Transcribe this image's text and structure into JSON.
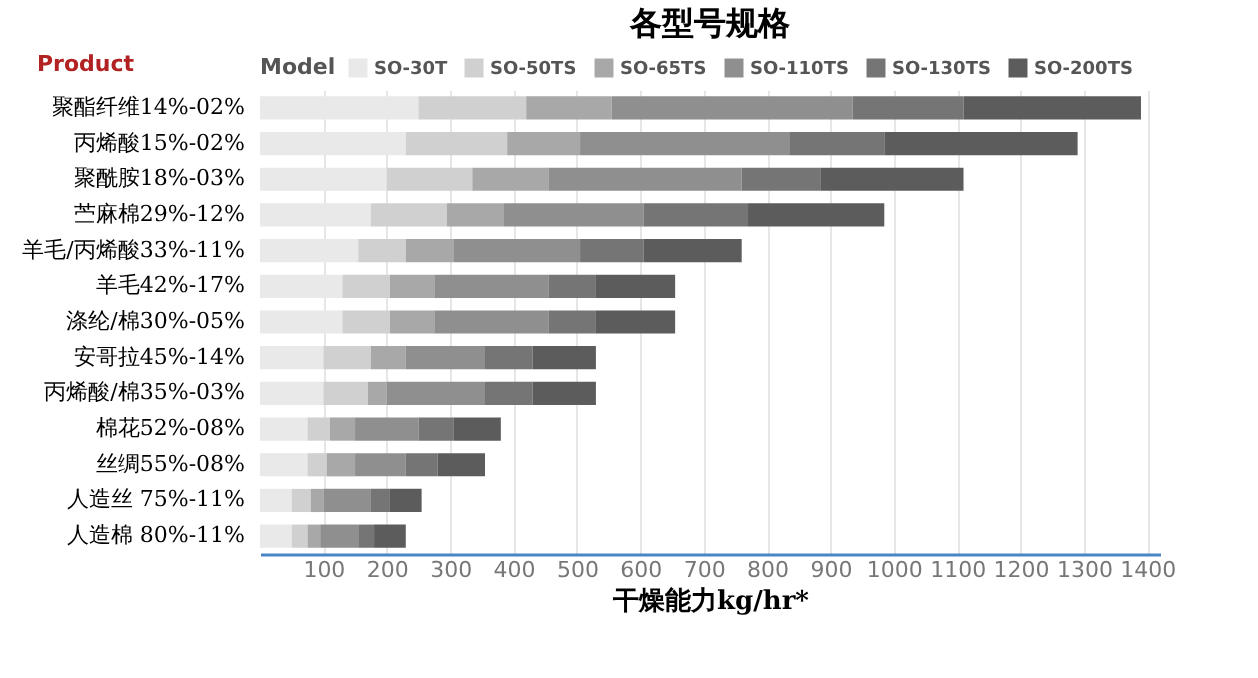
{
  "chart_data": {
    "type": "bar",
    "orientation": "horizontal",
    "stacked": true,
    "title": "各型号规格",
    "xlabel": "干燥能力kg/hr*",
    "ylabel": "Product",
    "legend_title": "Model",
    "legend": "top",
    "grid": "x",
    "categories": [
      "聚酯纤维14%-02%",
      "丙烯酸15%-02%",
      "聚酰胺18%-03%",
      "苎麻棉29%-12%",
      "羊毛/丙烯酸33%-11%",
      "羊毛42%-17%",
      "涤纶/棉30%-05%",
      "安哥拉45%-14%",
      "丙烯酸/棉35%-03%",
      "棉花52%-08%",
      "丝绸55%-08%",
      "人造丝 75%-11%",
      "人造棉 80%-11%"
    ],
    "xlim": [
      0,
      1420
    ],
    "xticks": [
      100,
      200,
      300,
      400,
      500,
      600,
      700,
      800,
      900,
      1000,
      1100,
      1200,
      1300,
      1400
    ],
    "series": [
      {
        "name": "SO-30T",
        "color": "#e8e9e8",
        "values": [
          250,
          230,
          200,
          175,
          155,
          130,
          130,
          100,
          100,
          75,
          75,
          50,
          50
        ]
      },
      {
        "name": "SO-50TS",
        "color": "#d0d0d0",
        "values": [
          170,
          160,
          135,
          120,
          75,
          75,
          75,
          75,
          70,
          35,
          30,
          30,
          25
        ]
      },
      {
        "name": "SO-65TS",
        "color": "#a8a8a8",
        "values": [
          135,
          115,
          120,
          90,
          75,
          70,
          70,
          55,
          30,
          40,
          45,
          20,
          20
        ]
      },
      {
        "name": "SO-110TS",
        "color": "#8f8f8f",
        "values": [
          380,
          330,
          305,
          220,
          200,
          180,
          180,
          125,
          155,
          100,
          80,
          75,
          60
        ]
      },
      {
        "name": "SO-130TS",
        "color": "#757575",
        "values": [
          175,
          150,
          125,
          165,
          100,
          75,
          75,
          75,
          75,
          55,
          50,
          30,
          25
        ]
      },
      {
        "name": "SO-200TS",
        "color": "#5c5c5c",
        "values": [
          280,
          305,
          225,
          215,
          155,
          125,
          125,
          100,
          100,
          75,
          75,
          50,
          50
        ]
      }
    ]
  }
}
